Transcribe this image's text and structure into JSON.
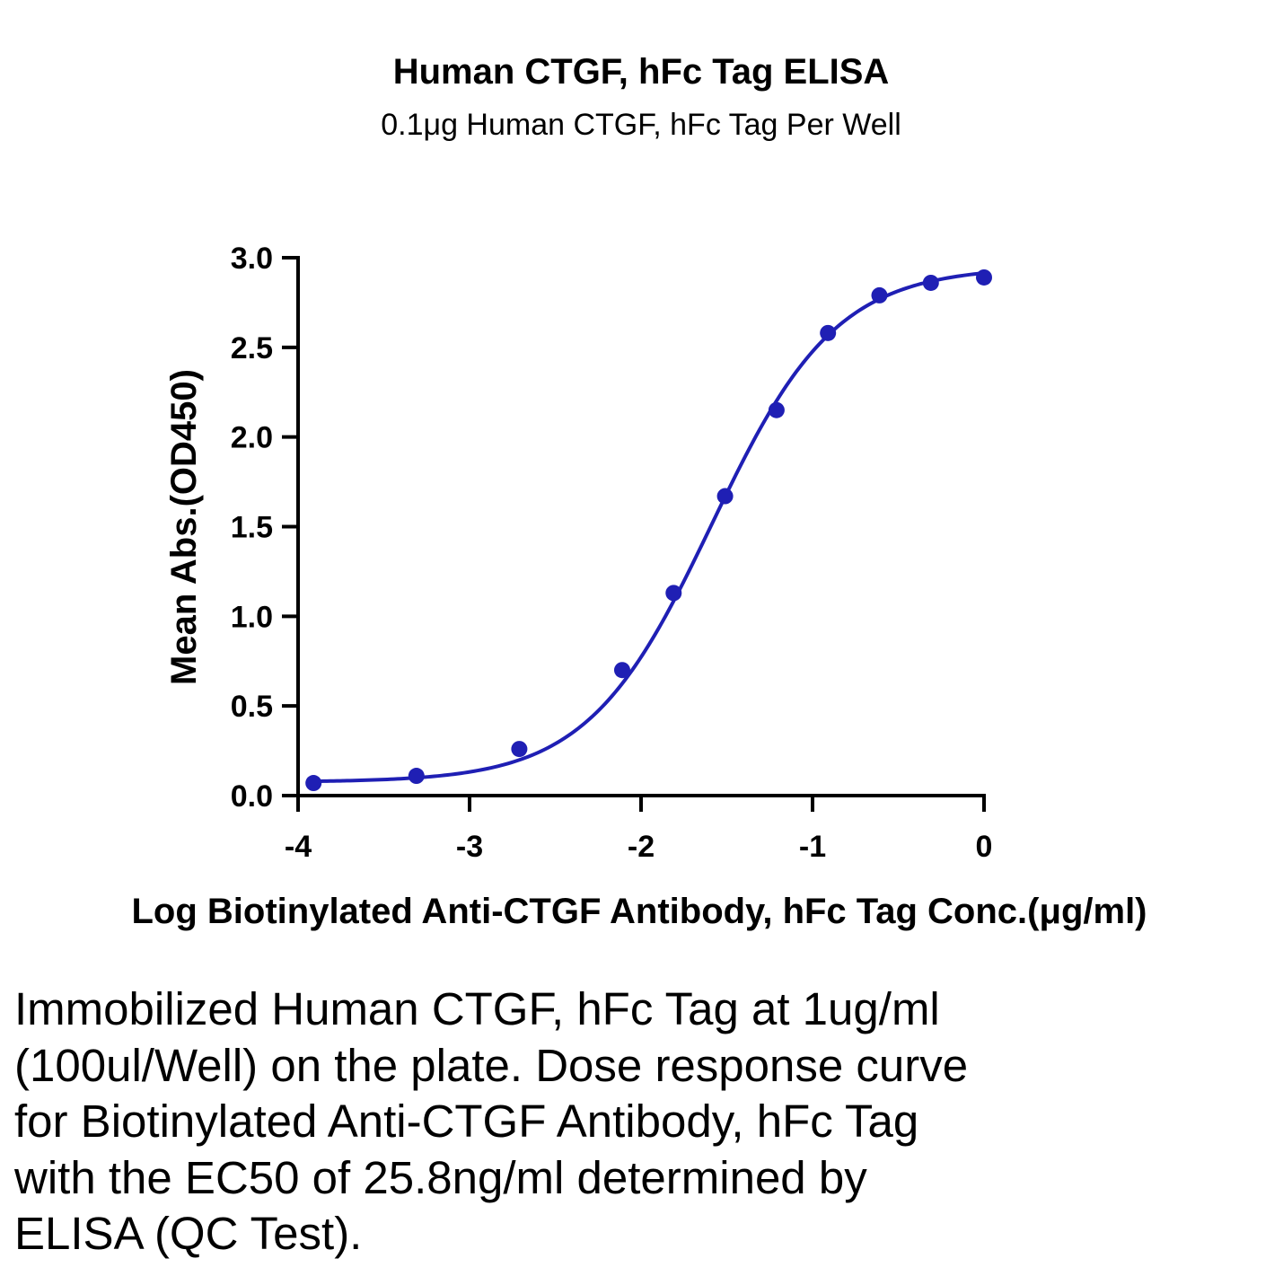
{
  "chart_data": {
    "type": "scatter",
    "title": "Human CTGF, hFc Tag ELISA",
    "subtitle": "0.1μg Human CTGF, hFc Tag Per Well",
    "xlabel": "Log Biotinylated Anti-CTGF Antibody, hFc Tag Conc.(μg/ml)",
    "ylabel": "Mean Abs.(OD450)",
    "xlim": [
      -4,
      0
    ],
    "ylim": [
      0,
      3.0
    ],
    "x_ticks": [
      -4,
      -3,
      -2,
      -1,
      0
    ],
    "x_tick_labels": [
      "-4",
      "-3",
      "-2",
      "-1",
      "0"
    ],
    "y_ticks": [
      0,
      0.5,
      1.0,
      1.5,
      2.0,
      2.5,
      3.0
    ],
    "y_tick_labels": [
      "0.0",
      "0.5",
      "1.0",
      "1.5",
      "2.0",
      "2.5",
      "3.0"
    ],
    "grid": false,
    "color": "#1f1fb4",
    "series": [
      {
        "x": [
          -3.91,
          -3.31,
          -2.71,
          -2.11,
          -1.81,
          -1.51,
          -1.21,
          -0.91,
          -0.61,
          -0.31,
          0.0
        ],
        "y": [
          0.07,
          0.11,
          0.26,
          0.7,
          1.13,
          1.67,
          2.15,
          2.58,
          2.79,
          2.86,
          2.89
        ]
      }
    ],
    "fit": {
      "model": "4PL",
      "bottom": 0.075,
      "top": 2.95,
      "log_ec50": -1.588,
      "hill_slope": 1.2
    }
  },
  "caption": "Immobilized Human CTGF, hFc Tag at 1ug/ml (100ul/Well) on the plate. Dose response curve for Biotinylated Anti-CTGF Antibody, hFc Tag with the EC50 of 25.8ng/ml determined by ELISA (QC Test)."
}
